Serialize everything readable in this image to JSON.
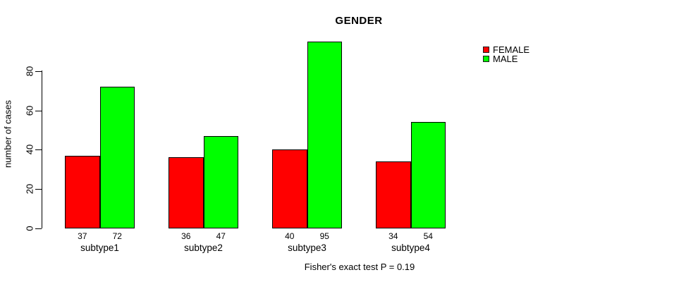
{
  "title": "GENDER",
  "y_axis_label": "number of cases",
  "annotation": "Fisher's exact test P = 0.19",
  "legend": {
    "position": "topright",
    "items": [
      {
        "label": "FEMALE",
        "color": "#ff0000"
      },
      {
        "label": "MALE",
        "color": "#00ff00"
      }
    ]
  },
  "chart_data": {
    "type": "bar",
    "grouped": true,
    "title": "GENDER",
    "xlabel": "",
    "ylabel": "number of cases",
    "categories": [
      "subtype1",
      "subtype2",
      "subtype3",
      "subtype4"
    ],
    "series": [
      {
        "name": "FEMALE",
        "color": "#ff0000",
        "values": [
          37,
          36,
          40,
          34
        ]
      },
      {
        "name": "MALE",
        "color": "#00ff00",
        "values": [
          72,
          47,
          95,
          54
        ]
      }
    ],
    "bar_value_labels": {
      "FEMALE": [
        37,
        36,
        40,
        34
      ],
      "MALE": [
        72,
        47,
        95,
        54
      ]
    },
    "yticks": [
      0,
      20,
      40,
      60,
      80
    ],
    "ylim": [
      0,
      95
    ],
    "grid": false,
    "annotation": "Fisher's exact test P = 0.19",
    "bar_border_color": "#000000"
  }
}
